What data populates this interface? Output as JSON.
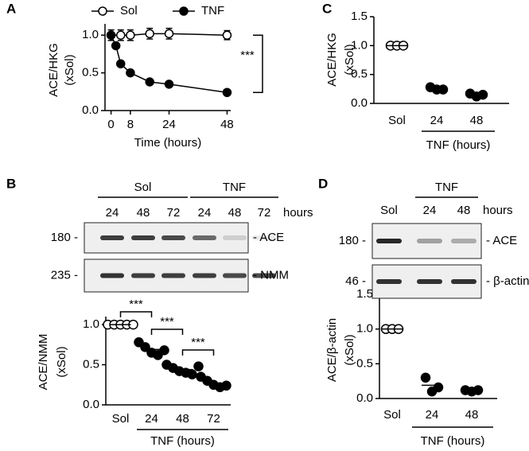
{
  "chart_data": [
    {
      "type": "line",
      "panel": "A",
      "ylabel": "ACE/HKG",
      "ylabel_unit": "(xSol)",
      "xlabel": "Time (hours)",
      "series": [
        {
          "name": "Sol",
          "color": "#000000",
          "marker": "open",
          "x": [
            0,
            4,
            8,
            16,
            24,
            48
          ],
          "values": [
            1,
            1,
            1,
            1.02,
            1.02,
            1
          ],
          "errors": [
            0.07,
            0.07,
            0.07,
            0.07,
            0.07,
            0.06
          ]
        },
        {
          "name": "TNF",
          "color": "#000000",
          "marker": "filled",
          "x": [
            0,
            2,
            4,
            8,
            16,
            24,
            48
          ],
          "values": [
            1,
            0.86,
            0.62,
            0.5,
            0.38,
            0.35,
            0.24
          ]
        }
      ],
      "xlim": [
        -2.5,
        49.5
      ],
      "xticks": [
        0,
        8,
        24,
        48
      ],
      "ylim": [
        0,
        1.15
      ],
      "yticks": [
        {
          "value": 0,
          "label": "0.0"
        },
        {
          "value": 0.5,
          "label": "0.5"
        },
        {
          "value": 1,
          "label": "1.0"
        }
      ],
      "significance": "***",
      "legend": "top"
    },
    {
      "type": "dotplot",
      "panel": "C",
      "ylabel": "ACE/HKG",
      "ylabel_unit": "(xSol)",
      "group_label": "TNF (hours)",
      "categories": [
        "Sol",
        "24",
        "48"
      ],
      "markers": [
        "open",
        "filled",
        "filled"
      ],
      "color": "#000000",
      "values": [
        [
          1,
          1,
          1
        ],
        [
          0.28,
          0.24,
          0.24
        ],
        [
          0.17,
          0.12,
          0.15
        ]
      ],
      "means": [
        1,
        0.25,
        0.15
      ],
      "ylim": [
        0,
        1.5
      ],
      "yticks": [
        {
          "value": 0,
          "label": "0.0"
        },
        {
          "value": 0.5,
          "label": "0.5"
        },
        {
          "value": 1,
          "label": "1.0"
        },
        {
          "value": 1.5,
          "label": "1.5"
        }
      ]
    },
    {
      "type": "dotplot",
      "panel": "B",
      "ylabel": "ACE/NMM",
      "ylabel_unit": "(xSol)",
      "group_label": "TNF (hours)",
      "categories": [
        "Sol",
        "24",
        "48",
        "72"
      ],
      "markers": [
        "open",
        "filled",
        "filled",
        "filled"
      ],
      "color": "#000000",
      "values": [
        [
          1,
          1,
          1,
          1,
          1
        ],
        [
          0.78,
          0.72,
          0.65,
          0.62,
          0.68
        ],
        [
          0.5,
          0.46,
          0.42,
          0.4,
          0.38,
          0.48
        ],
        [
          0.35,
          0.3,
          0.25,
          0.22,
          0.24
        ]
      ],
      "means": [
        1,
        0.69,
        0.44,
        0.27
      ],
      "ylim": [
        0,
        1.1
      ],
      "yticks": [
        {
          "value": 0,
          "label": "0.0"
        },
        {
          "value": 0.5,
          "label": "0.5"
        },
        {
          "value": 1,
          "label": "1.0"
        }
      ],
      "significance": [
        "***",
        "***",
        "***"
      ]
    },
    {
      "type": "dotplot",
      "panel": "D",
      "ylabel": "ACE/β-actin",
      "ylabel_unit": "(xSol)",
      "group_label": "TNF (hours)",
      "categories": [
        "Sol",
        "24",
        "48"
      ],
      "markers": [
        "open",
        "filled",
        "filled"
      ],
      "color": "#000000",
      "values": [
        [
          1,
          1,
          1
        ],
        [
          0.3,
          0.1,
          0.16
        ],
        [
          0.12,
          0.1,
          0.12
        ]
      ],
      "means": [
        1,
        0.19,
        0.12
      ],
      "ylim": [
        0,
        1.5
      ],
      "yticks": [
        {
          "value": 0,
          "label": "0.0"
        },
        {
          "value": 0.5,
          "label": "0.5"
        },
        {
          "value": 1,
          "label": "1.0"
        },
        {
          "value": 1.5,
          "label": "1.5"
        }
      ]
    }
  ],
  "blots": [
    {
      "panel": "B",
      "groups": [
        "Sol",
        "TNF"
      ],
      "lanes": [
        "24",
        "48",
        "72",
        "24",
        "48",
        "72"
      ],
      "lanes_unit": "hours",
      "rows": [
        {
          "marker": "180 -",
          "label": "- ACE"
        },
        {
          "marker": "235 -",
          "label": "- NMM"
        }
      ]
    },
    {
      "panel": "D",
      "groups": [
        "TNF"
      ],
      "lanes": [
        "Sol",
        "24",
        "48"
      ],
      "lanes_unit": "hours",
      "rows": [
        {
          "marker": "180 -",
          "label": "- ACE"
        },
        {
          "marker": "46 -",
          "label": "- β-actin"
        }
      ]
    }
  ]
}
